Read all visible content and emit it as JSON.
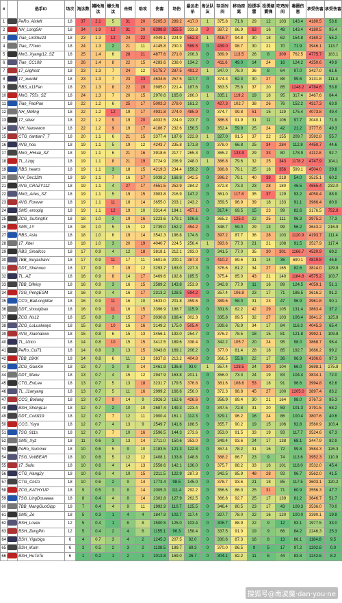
{
  "headers": [
    "#",
    "",
    "选手ID",
    "场次",
    "淘汰数",
    "補枪淘汰",
    "爆头淘汰",
    "击倒",
    "助攻",
    "伤害",
    "场伤",
    "最远击杀",
    "淘汰队友",
    "存活时间",
    "移动距离",
    "投掷手雷",
    "投掷烟雾弹",
    "吃鸡时间",
    "毒圈伤害",
    "承受伤害",
    "承受伤害"
  ],
  "watermark": "搜狐号@南波魔·dan·you·ne",
  "rows": [
    [
      "1",
      "PeRo_Aixleft",
      "18",
      "37",
      "2.1",
      "5",
      "31",
      "20",
      "5205.3",
      "289.2",
      "417.0",
      "1",
      "375.8",
      "71.6",
      "29",
      "12",
      "103",
      "143.4",
      "4180.5",
      "53.6"
    ],
    [
      "2",
      "NH_LongSkr",
      "18",
      "34",
      "1.9",
      "12",
      "31",
      "20",
      "6398.8",
      "355.5",
      "333.8",
      "3",
      "387.2",
      "86.9",
      "63",
      "16",
      "48",
      "143.4",
      "4180.5",
      "95.4"
    ],
    [
      "3",
      "Tian_LinShu23",
      "18",
      "23",
      "1.3",
      "12",
      "24",
      "22",
      "4049.1",
      "224.9",
      "552.3",
      "1",
      "416.7",
      "94.8",
      "30",
      "18",
      "62",
      "154.8",
      "4160.2",
      "55.2"
    ],
    [
      "4",
      "Tian_77owo",
      "18",
      "24",
      "1.3",
      "2",
      "21",
      "11",
      "4145.8",
      "230.3",
      "589.5",
      "0",
      "439.0",
      "98.7",
      "30",
      "21",
      "70",
      "71.9",
      "3946.1",
      "113.7"
    ],
    [
      "5",
      "MnG_Xyangi12_SZ",
      "18",
      "25",
      "1.4",
      "6",
      "28",
      "21",
      "4877.6",
      "271.0",
      "206.3",
      "0",
      "389.9",
      "113.5",
      "26",
      "8",
      "309",
      "762.5",
      "4775.7",
      "183.1"
    ],
    [
      "6",
      "Tian_CC108",
      "18",
      "26",
      "1.4",
      "8",
      "22",
      "15",
      "4283.6",
      "238.0",
      "134.2",
      "0",
      "411.6",
      "49.0",
      "14",
      "24",
      "16",
      "124.2",
      "4250.6",
      "49.9"
    ],
    [
      "7",
      "17_Lilghost",
      "18",
      "23",
      "1.3",
      "7",
      "24",
      "12",
      "5175.7",
      "287.5",
      "491.2",
      "1",
      "347.0",
      "78.0",
      "36",
      "8",
      "64",
      "97.0",
      "3427.0",
      "61.6"
    ],
    [
      "8",
      "17_xwudd",
      "18",
      "23",
      "1.3",
      "7",
      "23",
      "23",
      "4634.6",
      "257.5",
      "117.7",
      "0",
      "374.3",
      "62.3",
      "30",
      "27",
      "88",
      "99.6",
      "3131.8",
      "111.4"
    ],
    [
      "9",
      "RBS_x11Fan",
      "18",
      "23",
      "1.3",
      "8",
      "22",
      "20",
      "3985.0",
      "221.4",
      "187.6",
      "0",
      "363.5",
      "75.8",
      "37",
      "20",
      "85",
      "1248.2",
      "4784.6",
      "53.8"
    ],
    [
      "10",
      "MnG_755s_SZ",
      "18",
      "24",
      "1.3",
      "7",
      "20",
      "15",
      "2970.6",
      "165.0",
      "286.0",
      "1",
      "335.1",
      "119.2",
      "19",
      "18",
      "95",
      "317.4",
      "3467.6",
      "64.4"
    ],
    [
      "11",
      "Tian_PaoPao",
      "18",
      "22",
      "1.2",
      "6",
      "25",
      "17",
      "5003.3",
      "278.0",
      "161.2",
      "0",
      "427.3",
      "102.7",
      "38",
      "26",
      "76",
      "152.2",
      "4317.3",
      "63.9"
    ],
    [
      "12",
      "NH_MMing",
      "18",
      "22",
      "1.2",
      "12",
      "19",
      "17",
      "4931.8",
      "274.0",
      "485.9",
      "0",
      "374.7",
      "99.8",
      "51",
      "15",
      "119",
      "175.4",
      "4073.8",
      "49.4"
    ],
    [
      "13",
      "17_silver",
      "18",
      "22",
      "1.2",
      "9",
      "19",
      "20",
      "4032.5",
      "224.0",
      "223.7",
      "0",
      "386.8",
      "91.9",
      "31",
      "11",
      "106",
      "97.7",
      "3040.1",
      "71.9"
    ],
    [
      "14",
      "NH_Namewon",
      "18",
      "22",
      "1.2",
      "9",
      "19",
      "17",
      "4186.7",
      "232.6",
      "156.5",
      "0",
      "352.4",
      "59.9",
      "25",
      "24",
      "42",
      "21.2",
      "3777.6",
      "49.3"
    ],
    [
      "15",
      "CTG_tiantian7_7",
      "18",
      "20",
      "1.1",
      "6",
      "21",
      "15",
      "3377.4",
      "187.6",
      "222.8",
      "1",
      "327.0",
      "91.5",
      "37",
      "22",
      "155",
      "209.7",
      "3592.8",
      "55.7"
    ],
    [
      "16",
      "AVG_hou",
      "18",
      "19",
      "1.1",
      "5",
      "19",
      "12",
      "4243.7",
      "235.8",
      "171.8",
      "0",
      "378.0",
      "66.8",
      "25",
      "34",
      "284",
      "112.8",
      "4450.7",
      "44.6"
    ],
    [
      "17",
      "MnG_HHuai_SZ",
      "18",
      "19",
      "1.1",
      "6",
      "21",
      "16",
      "3918.6",
      "217.7",
      "265.3",
      "0",
      "365.2",
      "133.9",
      "29",
      "33",
      "80",
      "178.9",
      "4112.8",
      "92.7"
    ],
    [
      "18",
      "TL_Lzqq",
      "18",
      "19",
      "1.1",
      "8",
      "21",
      "19",
      "3724.9",
      "206.9",
      "248.0",
      "1",
      "386.8",
      "79.6",
      "32",
      "25",
      "343",
      "1178.2",
      "4747.9",
      "104.1"
    ],
    [
      "19",
      "RBS_hearts",
      "18",
      "19",
      "1.1",
      "3",
      "18",
      "15",
      "4219.3",
      "234.4",
      "159.2",
      "0",
      "388.8",
      "79.1",
      "25",
      "18",
      "356",
      "599.1",
      "4504.0",
      "29.8"
    ],
    [
      "20",
      "NH_Dec12th",
      "18",
      "19",
      "1.1",
      "7",
      "16",
      "17",
      "3038.2",
      "168.8",
      "342.5",
      "0",
      "396.2",
      "79.1",
      "40",
      "38",
      "218",
      "54.0",
      "3525.1",
      "60.2"
    ],
    [
      "21",
      "AVG_CRAZY112",
      "18",
      "19",
      "1.1",
      "4",
      "27",
      "17",
      "4551.5",
      "252.9",
      "284.2",
      "0",
      "372.8",
      "73.3",
      "23",
      "28",
      "180",
      "46.5",
      "4655.4",
      "232.0"
    ],
    [
      "22",
      "MnG_Aries_SZ",
      "18",
      "19",
      "1.1",
      "5",
      "19",
      "15",
      "3903.8",
      "216.9",
      "147.2",
      "0",
      "361.0",
      "117.8",
      "35",
      "37",
      "129",
      "93.2",
      "4050.4",
      "88.9"
    ],
    [
      "23",
      "AVG_Forever",
      "18",
      "19",
      "1.1",
      "11",
      "18",
      "14",
      "3655.0",
      "203.1",
      "243.2",
      "0",
      "359.5",
      "96.9",
      "39",
      "18",
      "133",
      "91.1",
      "3966.4",
      "80.9"
    ],
    [
      "24",
      "SMS_emopig",
      "18",
      "19",
      "1.1",
      "12",
      "19",
      "10",
      "3314.4",
      "184.1",
      "457.1",
      "0",
      "317.4",
      "69.5",
      "15",
      "23",
      "99",
      "82.6",
      "3176.5",
      "752.8"
    ],
    [
      "25",
      "ZCG_SuXIngKk",
      "18",
      "18",
      "1.0",
      "3",
      "19",
      "16",
      "3223.6",
      "179.1",
      "106.6",
      "0",
      "365.2",
      "125.0",
      "22",
      "25",
      "111",
      "96.3",
      "3975.2",
      "77.3"
    ],
    [
      "26",
      "SMS_LY",
      "18",
      "18",
      "1.0",
      "5",
      "15",
      "12",
      "2739.0",
      "152.2",
      "454.2",
      "0",
      "348.7",
      "59.0",
      "29",
      "13",
      "99",
      "56.2",
      "3643.2",
      "216.9"
    ],
    [
      "27",
      "RBS_Asiu",
      "18",
      "18",
      "1.0",
      "6",
      "19",
      "14",
      "3542.3",
      "196.8",
      "174.6",
      "0",
      "397.2",
      "87.7",
      "36",
      "28",
      "103",
      "1120.9",
      "4193.7",
      "111.4"
    ],
    [
      "28",
      "17_Xbei",
      "18",
      "18",
      "1.0",
      "3",
      "20",
      "19",
      "4040.7",
      "224.5",
      "256.4",
      "1",
      "393.6",
      "77.3",
      "21",
      "21",
      "108",
      "91.5",
      "3527.9",
      "117.4"
    ],
    [
      "29",
      "RBS_Smallccc",
      "18",
      "17",
      "0.9",
      "4",
      "12",
      "18",
      "3818.1",
      "212.1",
      "293.0",
      "0",
      "341.5",
      "77.0",
      "35",
      "30",
      "301",
      "1166.7",
      "4520.9",
      "69.2"
    ],
    [
      "30",
      "TBB_Inuyashavv",
      "18",
      "17",
      "0.9",
      "11",
      "17",
      "11",
      "3601.6",
      "200.1",
      "387.3",
      "0",
      "410.2",
      "89.6",
      "31",
      "14",
      "36",
      "690.1",
      "4819.8",
      "46.8"
    ],
    [
      "31",
      "DDT_Shenouo",
      "18",
      "17",
      "0.9",
      "7",
      "19",
      "12",
      "3293.7",
      "183.0",
      "227.3",
      "0",
      "376.6",
      "81.2",
      "34",
      "27",
      "165",
      "82.6",
      "3814.0",
      "129.8"
    ],
    [
      "32",
      "TL_AZ",
      "18",
      "16",
      "0.9",
      "8",
      "14",
      "17",
      "3469.6",
      "192.8",
      "185.5",
      "0",
      "375.4",
      "85.0",
      "43",
      "21",
      "140",
      "1184.8",
      "4575.2",
      "103.7"
    ],
    [
      "33",
      "TBB_Difeixy",
      "18",
      "16",
      "0.9",
      "3",
      "16",
      "15",
      "2589.2",
      "143.8",
      "253.9",
      "0",
      "342.8",
      "77.9",
      "11",
      "16",
      "89",
      "124.5",
      "4059.1",
      "51.1"
    ],
    [
      "34",
      "TSG_PengEGM",
      "18",
      "16",
      "0.9",
      "4",
      "16",
      "17",
      "2313.2",
      "128.5",
      "594.2",
      "0",
      "357.4",
      "106.8",
      "23",
      "17",
      "71",
      "186.5",
      "3616.2",
      "91.2"
    ],
    [
      "35",
      "CCG_BaiLongMax",
      "18",
      "16",
      "0.9",
      "11",
      "16",
      "10",
      "3633.0",
      "201.8",
      "359.6",
      "0",
      "389.6",
      "58.0",
      "31",
      "23",
      "47",
      "96.9",
      "3961.8",
      "90.1"
    ],
    [
      "36",
      "DDT_shouqibao",
      "18",
      "16",
      "0.9",
      "11",
      "16",
      "15",
      "3396.9",
      "188.7",
      "115.9",
      "0",
      "331.6",
      "82.2",
      "42",
      "29",
      "105",
      "131.4",
      "3863.4",
      "37.2"
    ],
    [
      "37",
      "ZCG_Ns12",
      "18",
      "15",
      "0.8",
      "3",
      "15",
      "17",
      "3030.8",
      "168.4",
      "302.3",
      "0",
      "335.8",
      "89.5",
      "32",
      "27",
      "103",
      "106.4",
      "3841.2",
      "125.8"
    ],
    [
      "38",
      "ZCG_LuLualways",
      "18",
      "15",
      "0.8",
      "10",
      "16",
      "16",
      "3149.2",
      "175.0",
      "505.4",
      "0",
      "339.6",
      "78.9",
      "34",
      "17",
      "84",
      "116.3",
      "4045.3",
      "65.4"
    ],
    [
      "39",
      "AVG_Xiaohaixxx",
      "18",
      "15",
      "0.8",
      "6",
      "15",
      "13",
      "3456.1",
      "192.0",
      "254.7",
      "0",
      "376.2",
      "78.5",
      "18",
      "15",
      "81",
      "121.8",
      "3992.1",
      "109.8"
    ],
    [
      "40",
      "TL_Uzico",
      "18",
      "14",
      "0.8",
      "10",
      "15",
      "15",
      "3412.5",
      "189.6",
      "338.4",
      "0",
      "342.2",
      "105.7",
      "20",
      "24",
      "95",
      "98.0",
      "3868.7",
      "98.4"
    ],
    [
      "41",
      "PeRo_Cui71",
      "18",
      "14",
      "0.8",
      "3",
      "13",
      "15",
      "3043.6",
      "169.1",
      "206.2",
      "0",
      "377.0",
      "81.4",
      "28",
      "18",
      "85",
      "192.7",
      "3686.2",
      "99.2"
    ],
    [
      "42",
      "TBB_16KK",
      "18",
      "14",
      "0.8",
      "6",
      "11",
      "13",
      "3837.8",
      "213.2",
      "404.8",
      "0",
      "366.5",
      "55.6",
      "22",
      "17",
      "36",
      "96.9",
      "4106.6",
      "97.3"
    ],
    [
      "43",
      "ZCG_GaoXin",
      "18",
      "13",
      "0.7",
      "3",
      "9",
      "14",
      "2461.9",
      "136.8",
      "93.0",
      "1",
      "357.4",
      "128.5",
      "24",
      "30",
      "104",
      "66.0",
      "3698.1",
      "275.8"
    ],
    [
      "44",
      "DDT_Manu",
      "18",
      "13",
      "0.7",
      "4",
      "15",
      "12",
      "2947.9",
      "163.8",
      "201.1",
      "0",
      "356.0",
      "73.3",
      "24",
      "19",
      "83",
      "104.4",
      "3834.1",
      "72.0"
    ],
    [
      "45",
      "CTG_EviLee",
      "18",
      "13",
      "0.7",
      "5",
      "13",
      "18",
      "3231.7",
      "179.5",
      "376.8",
      "0",
      "381.6",
      "108.6",
      "53",
      "18",
      "91",
      "96.6",
      "3994.8",
      "62.6"
    ],
    [
      "46",
      "TL_J1anyang",
      "18",
      "13",
      "0.7",
      "5",
      "11",
      "16",
      "2999.2",
      "166.6",
      "256.0",
      "0",
      "372.3",
      "98.8",
      "45",
      "27",
      "100",
      "1205.0",
      "3897.4",
      "83.2"
    ],
    [
      "47",
      "CCG_Boliang",
      "18",
      "13",
      "0.7",
      "9",
      "14",
      "9",
      "2926.3",
      "162.6",
      "426.6",
      "0",
      "356.9",
      "89.4",
      "30",
      "21",
      "164",
      "98.0",
      "3767.3",
      "85.3"
    ],
    [
      "48",
      "BSH_ShengLai",
      "18",
      "12",
      "0.7",
      "2",
      "10",
      "10",
      "2687.4",
      "149.3",
      "223.4",
      "0",
      "347.5",
      "72.8",
      "31",
      "20",
      "59",
      "101.3",
      "3791.5",
      "68.2"
    ],
    [
      "49",
      "DDT_Cold119",
      "18",
      "12",
      "0.7",
      "7",
      "12",
      "11",
      "2900.4",
      "161.1",
      "112.3",
      "0",
      "329.1",
      "96.2",
      "16",
      "24",
      "86",
      "100.4",
      "3807.6",
      "40.6"
    ],
    [
      "50",
      "CCG_Yuyu",
      "18",
      "12",
      "0.7",
      "4",
      "13",
      "9",
      "2549.7",
      "141.6",
      "188.5",
      "0",
      "355.7",
      "90.2",
      "19",
      "15",
      "106",
      "92.8",
      "3560.9",
      "103.4"
    ],
    [
      "51",
      "TSG_911s",
      "18",
      "12",
      "0.7",
      "7",
      "10",
      "16",
      "2596.5",
      "144.3",
      "273.6",
      "0",
      "353.0",
      "91.5",
      "33",
      "19",
      "93",
      "117.7",
      "3524.6",
      "67.3"
    ],
    [
      "52",
      "SMS_Xyz",
      "18",
      "11",
      "0.6",
      "3",
      "13",
      "14",
      "2711.0",
      "150.6",
      "353.0",
      "0",
      "349.4",
      "93.6",
      "24",
      "17",
      "138",
      "68.1",
      "3447.9",
      "82.9"
    ],
    [
      "53",
      "PeRo_Summer",
      "18",
      "10",
      "0.6",
      "5",
      "9",
      "10",
      "2183.5",
      "121.3",
      "122.8",
      "0",
      "357.4",
      "78.2",
      "31",
      "16",
      "72",
      "99.8",
      "3584.3",
      "126.3"
    ],
    [
      "54",
      "TSG_VoltBEAR",
      "18",
      "10",
      "0.6",
      "5",
      "12",
      "12",
      "2408.1",
      "133.8",
      "148.8",
      "0",
      "388.2",
      "86.7",
      "23",
      "9",
      "74",
      "113.6",
      "3952.3",
      "110.9"
    ],
    [
      "55",
      "17_Suliu",
      "18",
      "10",
      "0.6",
      "4",
      "14",
      "13",
      "2558.6",
      "142.1",
      "136.0",
      "0",
      "375.7",
      "88.2",
      "33",
      "16",
      "101",
      "118.0",
      "3532.0",
      "45.4"
    ],
    [
      "56",
      "CTG_Hang2y",
      "18",
      "10",
      "0.6",
      "4",
      "10",
      "15",
      "2211.5",
      "122.9",
      "287.3",
      "0",
      "342.5",
      "85.9",
      "48",
      "28",
      "93",
      "96.7",
      "3562.0",
      "41.5"
    ],
    [
      "57",
      "CTG_CoCo",
      "18",
      "10",
      "0.6",
      "2",
      "9",
      "14",
      "1773.4",
      "98.5",
      "145.0",
      "0",
      "378.7",
      "93.6",
      "21",
      "18",
      "85",
      "117.5",
      "3603.1",
      "120.2"
    ],
    [
      "58",
      "ZCG_KATHYUP",
      "18",
      "9",
      "0.5",
      "3",
      "8",
      "14",
      "2005.3",
      "111.4",
      "292.2",
      "0",
      "356.6",
      "86.0",
      "25",
      "31",
      "71",
      "60.9",
      "3556.3",
      "47.7"
    ],
    [
      "59",
      "TSG_LingDouaaaa",
      "18",
      "8",
      "0.4",
      "4",
      "8",
      "14",
      "2302.8",
      "127.9",
      "262.5",
      "0",
      "366.8",
      "92.7",
      "25",
      "17",
      "139",
      "81.2",
      "3646.7",
      "51.7"
    ],
    [
      "60",
      "TBB_MangGuoGipp",
      "18",
      "7",
      "0.4",
      "4",
      "9",
      "11",
      "1992.9",
      "110.7",
      "125.5",
      "0",
      "346.4",
      "80.5",
      "23",
      "17",
      "43",
      "109.3",
      "3536.0",
      "70.0"
    ],
    [
      "61",
      "SMS_Ze",
      "18",
      "5",
      "0.3",
      "1",
      "4",
      "4",
      "1847.9",
      "102.7",
      "117.4",
      "0",
      "327.7",
      "78.0",
      "22",
      "16",
      "120",
      "100.0",
      "3390.1",
      "19.9"
    ],
    [
      "62",
      "BSH_Lovex",
      "12",
      "5",
      "0.4",
      "1",
      "6",
      "8",
      "1500.5",
      "125.0",
      "103.4",
      "0",
      "306.7",
      "88.9",
      "22",
      "9",
      "12",
      "93.1",
      "1977.5",
      "33.0"
    ],
    [
      "63",
      "BSH_ZengPin",
      "12",
      "5",
      "0.4",
      "2",
      "4",
      "6",
      "1155.1",
      "96.3",
      "158.4",
      "0",
      "337.5",
      "91.0",
      "19",
      "9",
      "66",
      "84.2",
      "2246.3",
      "25.3"
    ],
    [
      "64",
      "BSH_Yigubigu",
      "6",
      "4",
      "0.7",
      "3",
      "4",
      "2",
      "1245.3",
      "207.5",
      "82.0",
      "0",
      "330.6",
      "87.3",
      "16",
      "8",
      "13",
      "86.1",
      "1184.8",
      "9.5"
    ],
    [
      "65",
      "BSH_iKum",
      "6",
      "3",
      "0.5",
      "2",
      "3",
      "2",
      "1138.5",
      "189.7",
      "69.3",
      "0",
      "370.0",
      "86.5",
      "9",
      "5",
      "17",
      "97.2",
      "1202.8",
      "0.0"
    ],
    [
      "66",
      "BSH_HuTuTu",
      "6",
      "1",
      "0.2",
      "1",
      "2",
      "1",
      "1013.8",
      "169.0",
      "26.7",
      "0",
      "304.1",
      "82.2",
      "11",
      "6",
      "44",
      "83.8",
      "1242.6",
      "8.2"
    ]
  ]
}
